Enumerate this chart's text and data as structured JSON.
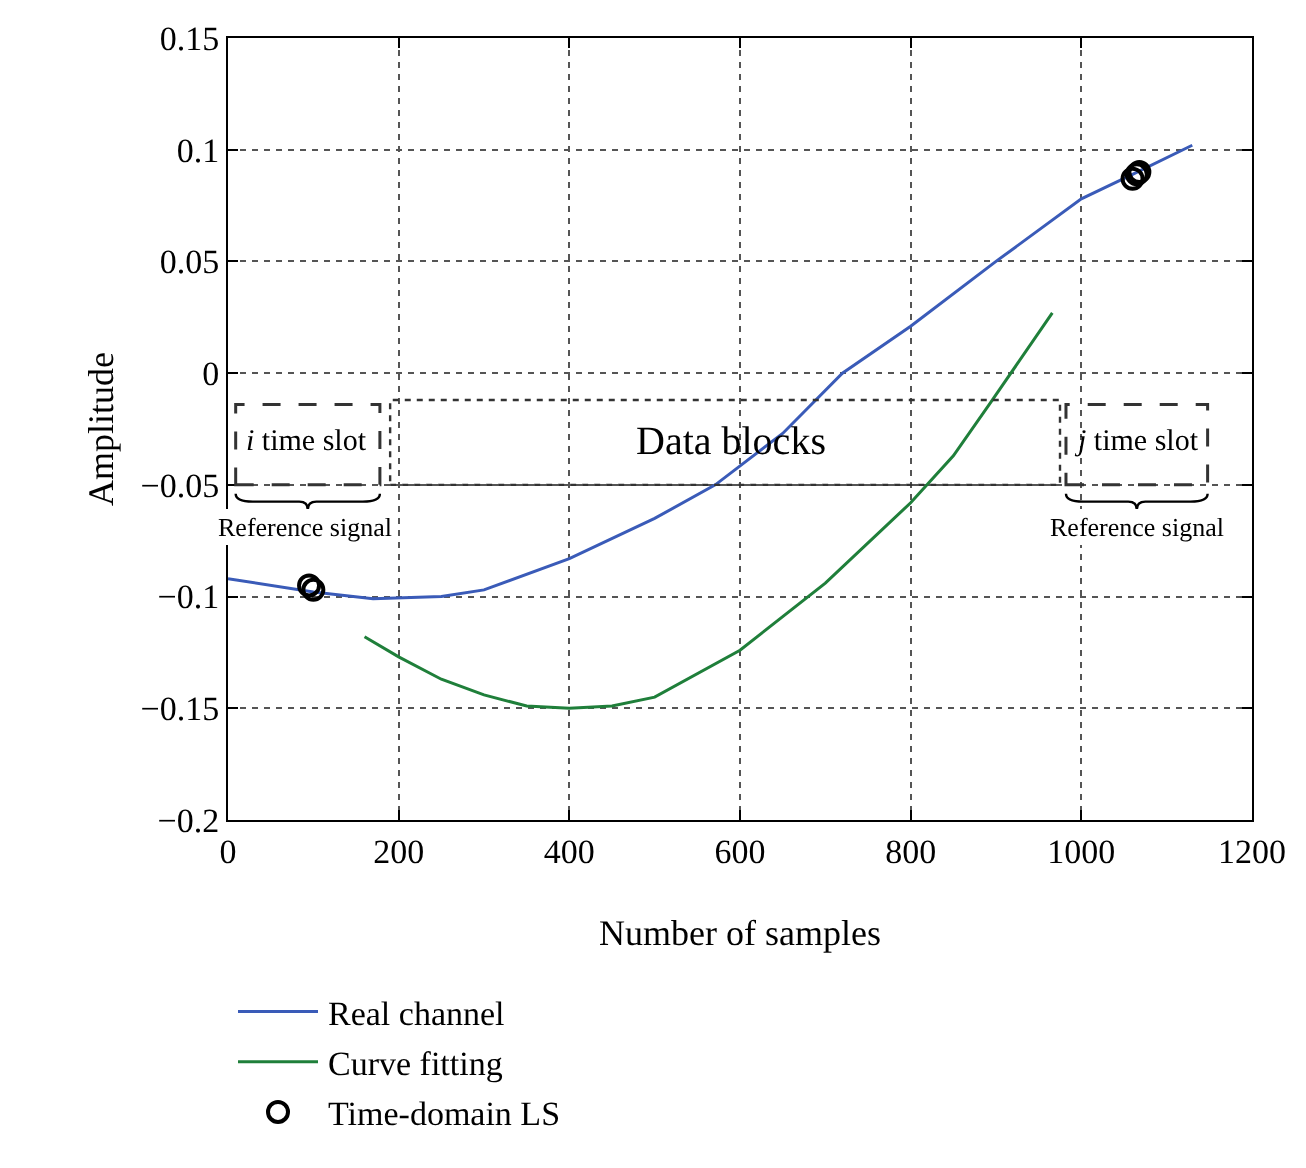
{
  "chart_data": {
    "type": "line",
    "xlabel": "Number of samples",
    "ylabel": "Amplitude",
    "xlim": [
      0,
      1200
    ],
    "xticks": [
      0,
      200,
      400,
      600,
      800,
      1000,
      1200
    ],
    "ylim": [
      -0.2,
      0.15
    ],
    "yticks": [
      {
        "value": -0.2,
        "label": "−0.2"
      },
      {
        "value": -0.15,
        "label": "−0.15"
      },
      {
        "value": -0.1,
        "label": "−0.1"
      },
      {
        "value": -0.05,
        "label": "−0.05"
      },
      0,
      0.05,
      0.1,
      0.15
    ],
    "grid": true,
    "legend": "bottom left",
    "series": [
      {
        "name": "Real channel",
        "color": "#3a5bb8",
        "x": [
          0,
          100,
          170,
          250,
          300,
          400,
          500,
          571,
          650,
          720,
          800,
          900,
          1000,
          1060,
          1130
        ],
        "values": [
          -0.092,
          -0.098,
          -0.101,
          -0.1,
          -0.097,
          -0.083,
          -0.065,
          -0.05,
          -0.027,
          0,
          0.021,
          0.05,
          0.078,
          0.089,
          0.102
        ]
      },
      {
        "name": "Curve fitting",
        "color": "#1f7f3a",
        "x": [
          160,
          200,
          250,
          300,
          350,
          400,
          450,
          500,
          600,
          700,
          800,
          850,
          894,
          966
        ],
        "values": [
          -0.118,
          -0.127,
          -0.137,
          -0.144,
          -0.149,
          -0.15,
          -0.149,
          -0.145,
          -0.124,
          -0.094,
          -0.058,
          -0.037,
          -0.013,
          0.027
        ]
      },
      {
        "name": "Time-domain LS",
        "type": "scatter",
        "marker": "circle",
        "color": "#000000",
        "x": [
          95,
          100,
          1060,
          1065,
          1068
        ],
        "values": [
          -0.095,
          -0.097,
          0.087,
          0.089,
          0.09
        ]
      }
    ],
    "annotations": [
      "i time slot",
      "Data blocks",
      "j time slot",
      "Reference signal",
      "Reference signal"
    ]
  }
}
